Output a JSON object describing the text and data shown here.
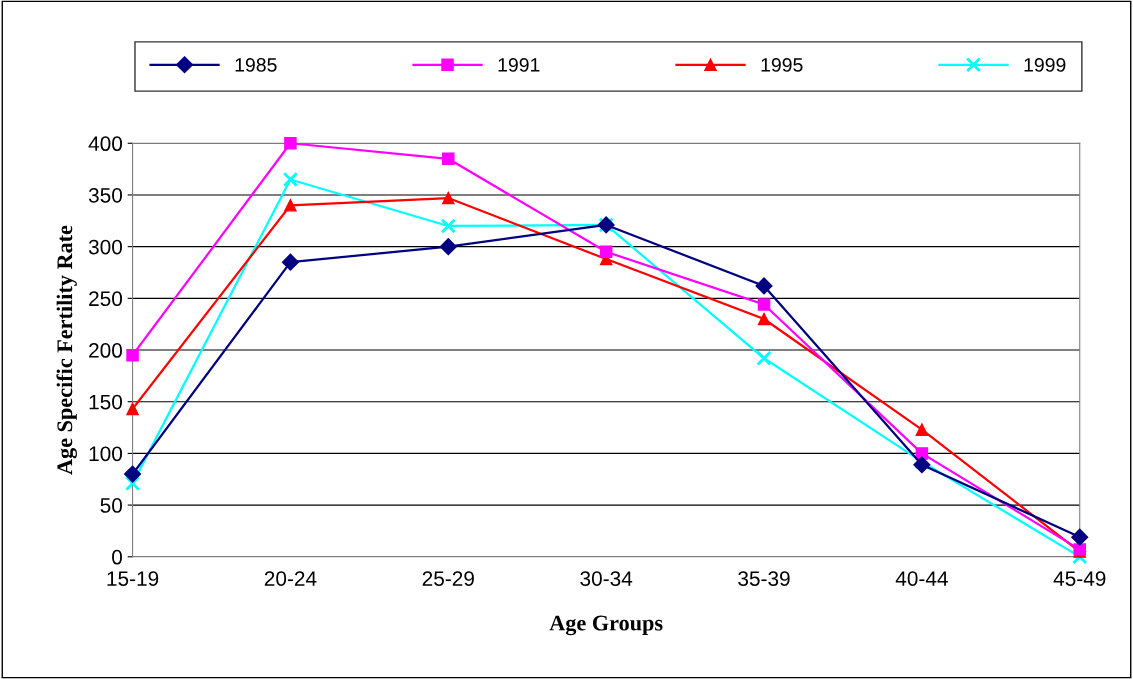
{
  "chart_data": {
    "type": "line",
    "xlabel": "Age Groups",
    "ylabel": "Age Specific Fertility Rate",
    "categories": [
      "15-19",
      "20-24",
      "25-29",
      "30-34",
      "35-39",
      "40-44",
      "45-49"
    ],
    "series": [
      {
        "name": "1985",
        "color": "#000080",
        "marker": "diamond",
        "values": [
          80,
          285,
          300,
          321,
          262,
          89,
          19
        ]
      },
      {
        "name": "1991",
        "color": "#ff00ff",
        "marker": "square",
        "values": [
          195,
          400,
          385,
          295,
          244,
          100,
          7
        ]
      },
      {
        "name": "1995",
        "color": "#ff0000",
        "marker": "triangle",
        "values": [
          143,
          340,
          347,
          288,
          230,
          123,
          5
        ]
      },
      {
        "name": "1999",
        "color": "#00ffff",
        "marker": "cross",
        "values": [
          71,
          365,
          320,
          321,
          192,
          92,
          0
        ]
      }
    ],
    "ylim": [
      0,
      400
    ],
    "yticks": [
      0,
      50,
      100,
      150,
      200,
      250,
      300,
      350,
      400
    ],
    "grid": "y",
    "legend": "top",
    "line_style": "solid"
  }
}
